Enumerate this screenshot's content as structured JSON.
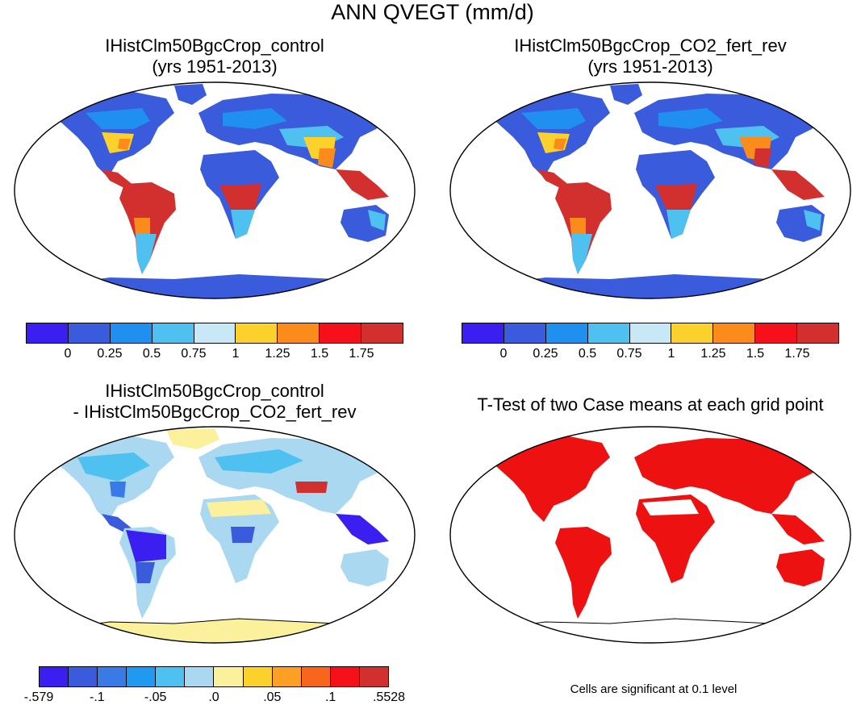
{
  "title": "ANN QVEGT (mm/d)",
  "panels": [
    {
      "title_line1": "IHistClm50BgcCrop_control",
      "title_line2": "(yrs 1951-2013)"
    },
    {
      "title_line1": "IHistClm50BgcCrop_CO2_fert_rev",
      "title_line2": "(yrs 1951-2013)"
    },
    {
      "title_line1": "IHistClm50BgcCrop_control",
      "title_line2": "- IHistClm50BgcCrop_CO2_fert_rev"
    },
    {
      "title_line1": "T-Test of two Case means at each grid point",
      "title_line2": ""
    }
  ],
  "colorbar_top": {
    "colors": [
      "#3b1ff0",
      "#3a5bdc",
      "#1f8ff0",
      "#4fc1f0",
      "#c8e8f8",
      "#fdd12b",
      "#fb8c1c",
      "#f6101a",
      "#d2302e"
    ],
    "labels": [
      "0",
      "0.25",
      "0.5",
      "0.75",
      "1",
      "1.25",
      "1.5",
      "1.75"
    ]
  },
  "colorbar_diff": {
    "colors": [
      "#3b1ff0",
      "#3a5bdc",
      "#3a7ae6",
      "#1f9af0",
      "#4fc1f0",
      "#aad8f0",
      "#fbf09c",
      "#fdd12b",
      "#fba024",
      "#f7661c",
      "#f6101a",
      "#d2302e"
    ],
    "labels": [
      "-.579",
      "-.1",
      "-.05",
      ".0",
      ".05",
      ".1",
      ".5528"
    ]
  },
  "significance_note": "Cells are significant at 0.1 level",
  "map_colors": {
    "ocean": "#ffffff",
    "antarctica_abs": "#3a5bdc",
    "antarctica_diff": "#fbf09c",
    "tropics": "#d2302e",
    "temperate": "#3a5bdc",
    "significant": "#ee1111"
  }
}
